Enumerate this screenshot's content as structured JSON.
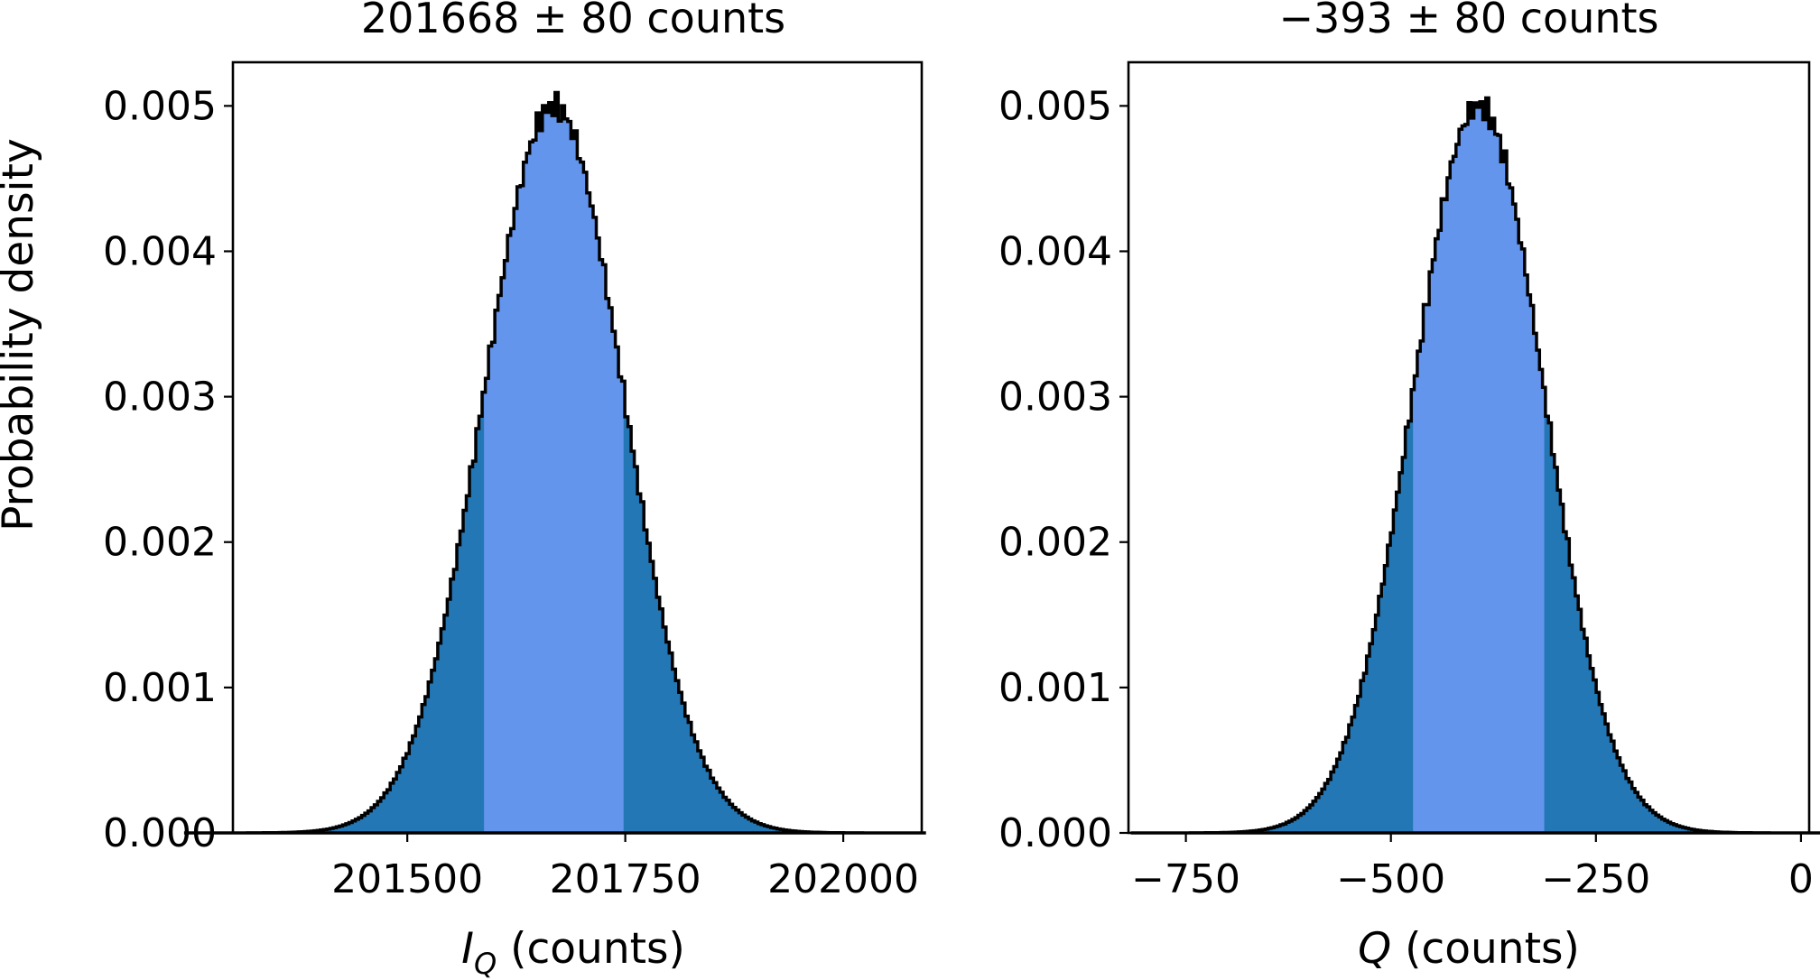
{
  "chart_data": [
    {
      "type": "histogram",
      "title": "201668 ± 80 counts",
      "ylabel": "Probability density",
      "xlabel_symbol": "I",
      "xlabel_subscript": "Q",
      "xlabel_unit": " (counts)",
      "xlim": [
        201300,
        202090
      ],
      "ylim": [
        0,
        0.0053
      ],
      "xticks": [
        201500,
        201750,
        202000
      ],
      "xtick_labels": [
        "201500",
        "201750",
        "202000"
      ],
      "yticks": [
        0,
        0.001,
        0.002,
        0.003,
        0.004,
        0.005
      ],
      "ytick_labels": [
        "0.000",
        "0.001",
        "0.002",
        "0.003",
        "0.004",
        "0.005"
      ],
      "mean": 201668,
      "sigma": 80,
      "peak_density": 0.005,
      "interval_low": 201588,
      "interval_high": 201748,
      "colors": {
        "outer": "#2477b5",
        "inner": "#6495ed",
        "edge": "#000000"
      }
    },
    {
      "type": "histogram",
      "title": "−393 ± 80 counts",
      "ylabel": "",
      "xlabel_symbol": "Q",
      "xlabel_subscript": "",
      "xlabel_unit": " (counts)",
      "xlim": [
        -820,
        10
      ],
      "ylim": [
        0,
        0.0053
      ],
      "xticks": [
        -750,
        -500,
        -250,
        0
      ],
      "xtick_labels": [
        "−750",
        "−500",
        "−250",
        "0"
      ],
      "yticks": [
        0,
        0.001,
        0.002,
        0.003,
        0.004,
        0.005
      ],
      "ytick_labels": [
        "0.000",
        "0.001",
        "0.002",
        "0.003",
        "0.004",
        "0.005"
      ],
      "mean": -393,
      "sigma": 80,
      "peak_density": 0.005,
      "interval_low": -473,
      "interval_high": -313,
      "colors": {
        "outer": "#2477b5",
        "inner": "#6495ed",
        "edge": "#000000"
      }
    }
  ]
}
